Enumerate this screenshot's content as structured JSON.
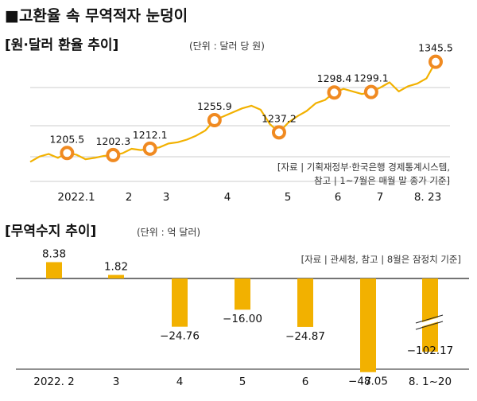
{
  "headline": "■고환율 속 무역적자 눈덩이",
  "chart_data": [
    {
      "type": "line",
      "title": "[원·달러 환율 추이]",
      "unit": "(단위 : 달러 당 원)",
      "x_labels": [
        "2022.1",
        "2",
        "3",
        "4",
        "5",
        "6",
        "7",
        "8. 23"
      ],
      "highlight_points": [
        {
          "label": "1205.5",
          "value": 1205.5
        },
        {
          "label": "1202.3",
          "value": 1202.3
        },
        {
          "label": "1212.1",
          "value": 1212.1
        },
        {
          "label": "1255.9",
          "value": 1255.9
        },
        {
          "label": "1237.2",
          "value": 1237.2
        },
        {
          "label": "1298.4",
          "value": 1298.4
        },
        {
          "label": "1299.1",
          "value": 1299.1
        },
        {
          "label": "1345.5",
          "value": 1345.5
        }
      ],
      "series": [
        {
          "values": [
            1192,
            1200,
            1204,
            1198,
            1205.5,
            1203,
            1196,
            1198,
            1201,
            1202.3,
            1205,
            1212,
            1210,
            1212.1,
            1214,
            1220,
            1222,
            1226,
            1232,
            1240,
            1255.9,
            1262,
            1268,
            1274,
            1278,
            1272,
            1250,
            1237.2,
            1252,
            1262,
            1270,
            1282,
            1287,
            1298.4,
            1304,
            1300,
            1296,
            1299.1,
            1306,
            1314,
            1300,
            1308,
            1312,
            1320,
            1345.5
          ]
        }
      ],
      "source": [
        "[자료 | 기획재정부·한국은행 경제통계시스템,",
        "참고 | 1~7월은 매월 말 종가 기준]"
      ]
    },
    {
      "type": "bar",
      "title": "[무역수지 추이]",
      "unit": "(단위 : 억 달러)",
      "source": "[자료 | 관세청, 참고 | 8월은 잠정치 기준]",
      "categories": [
        "2022. 2",
        "3",
        "4",
        "5",
        "6",
        "7",
        "8. 1~20"
      ],
      "values": [
        8.38,
        1.82,
        -24.76,
        -16.0,
        -24.87,
        -48.05,
        -102.17
      ],
      "value_labels": [
        "8.38",
        "1.82",
        "−24.76",
        "−16.00",
        "−24.87",
        "−48.05",
        "−102.17"
      ],
      "axis_break_on": "8. 1~20"
    }
  ],
  "colors": {
    "line": "#f2b100",
    "marker_fill": "#ffffff",
    "marker_stroke": "#f08a21",
    "bar": "#f2b100",
    "axis": "#222222",
    "gridline": "#bbbbbb"
  }
}
